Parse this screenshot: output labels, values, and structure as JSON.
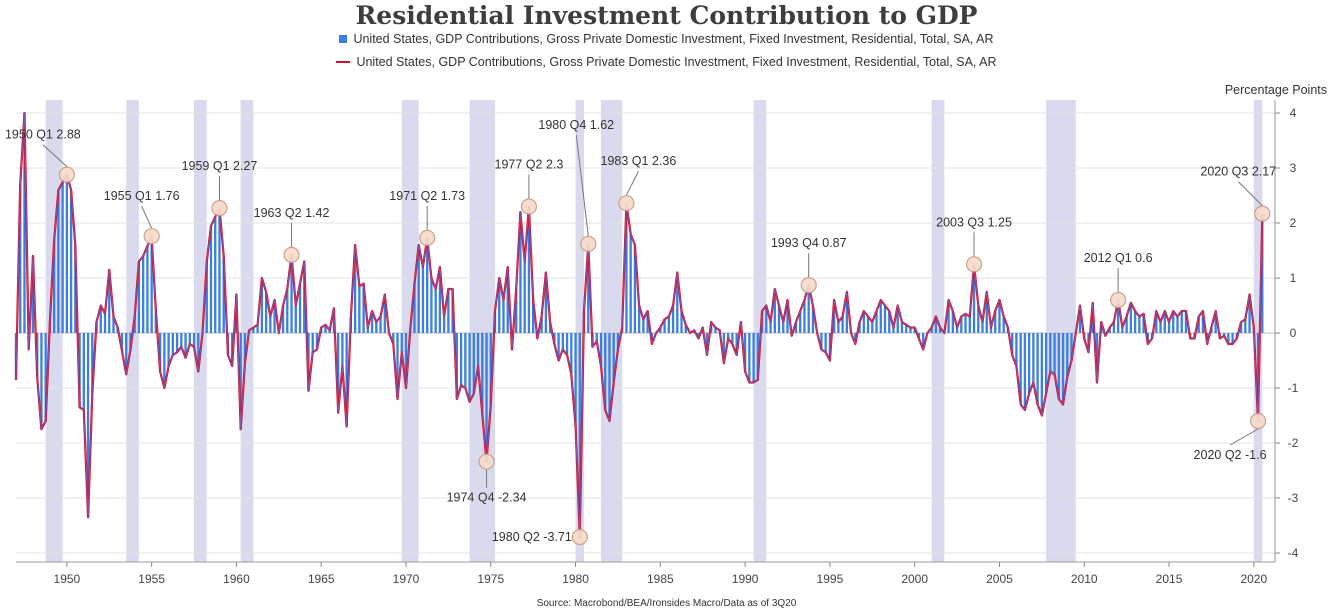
{
  "title": "Residential Investment Contribution to GDP",
  "legend": [
    {
      "name": "United States, GDP Contributions, Gross Private Domestic Investment, Fixed Investment, Residential, Total, SA, AR",
      "marker": "bar",
      "color": "#3c7fe0"
    },
    {
      "name": "United States, GDP Contributions, Gross Private Domestic Investment, Fixed Investment, Residential, Total, SA, AR",
      "marker": "line",
      "color": "#d0102c"
    }
  ],
  "unit_label": "Percentage Points",
  "source": "Source: Macrobond/BEA/Ironsides Macro/Data as of 3Q20",
  "colors": {
    "bars": "#3c7fe0",
    "line": "#d0102c",
    "recession": "#dadaee",
    "annotation_fill": "#f6dccb",
    "annotation_stroke": "#c89a85",
    "grid": "#e3e3e3",
    "text": "#444444"
  },
  "chart_data": {
    "type": "bar+line",
    "x_range": [
      1947.0,
      2021.25
    ],
    "ylim": [
      -4.2,
      4.2
    ],
    "y_ticks": [
      -4,
      -3,
      -2,
      -1,
      0,
      1,
      2,
      3,
      4
    ],
    "x_ticks": [
      1950,
      1955,
      1960,
      1965,
      1970,
      1975,
      1980,
      1985,
      1990,
      1995,
      2000,
      2005,
      2010,
      2015,
      2020
    ],
    "grid": true,
    "legend_position": "top-center",
    "recessions": [
      [
        1948.75,
        1949.75
      ],
      [
        1953.5,
        1954.25
      ],
      [
        1957.5,
        1958.25
      ],
      [
        1960.25,
        1961.0
      ],
      [
        1969.75,
        1970.75
      ],
      [
        1973.75,
        1975.25
      ],
      [
        1980.0,
        1980.5
      ],
      [
        1981.5,
        1982.75
      ],
      [
        1990.5,
        1991.25
      ],
      [
        2001.0,
        2001.75
      ],
      [
        2007.75,
        2009.5
      ],
      [
        2020.0,
        2020.5
      ]
    ],
    "quarterly_keypoints": [
      [
        1947.0,
        -0.85
      ],
      [
        1947.25,
        2.7
      ],
      [
        1947.5,
        4.0
      ],
      [
        1947.75,
        -0.3
      ],
      [
        1948.0,
        1.4
      ],
      [
        1948.25,
        -0.8
      ],
      [
        1948.5,
        -1.75
      ],
      [
        1948.75,
        -1.6
      ],
      [
        1949.0,
        0.2
      ],
      [
        1949.25,
        1.7
      ],
      [
        1949.5,
        2.6
      ],
      [
        1950.0,
        2.88
      ],
      [
        1950.25,
        2.6
      ],
      [
        1950.5,
        1.6
      ],
      [
        1950.75,
        -1.35
      ],
      [
        1951.0,
        -1.4
      ],
      [
        1951.25,
        -3.35
      ],
      [
        1951.5,
        -1.1
      ],
      [
        1951.75,
        0.2
      ],
      [
        1952.0,
        0.5
      ],
      [
        1952.25,
        0.35
      ],
      [
        1952.5,
        1.15
      ],
      [
        1952.75,
        0.3
      ],
      [
        1953.0,
        0.1
      ],
      [
        1953.5,
        -0.75
      ],
      [
        1953.75,
        -0.3
      ],
      [
        1954.0,
        0.3
      ],
      [
        1954.25,
        1.3
      ],
      [
        1954.5,
        1.4
      ],
      [
        1955.0,
        1.76
      ],
      [
        1955.25,
        0.4
      ],
      [
        1955.5,
        -0.7
      ],
      [
        1955.75,
        -1.0
      ],
      [
        1956.0,
        -0.6
      ],
      [
        1956.25,
        -0.4
      ],
      [
        1956.5,
        -0.35
      ],
      [
        1956.75,
        -0.25
      ],
      [
        1957.0,
        -0.45
      ],
      [
        1957.25,
        -0.2
      ],
      [
        1957.5,
        -0.25
      ],
      [
        1957.75,
        -0.7
      ],
      [
        1958.0,
        0.0
      ],
      [
        1958.25,
        1.3
      ],
      [
        1958.5,
        1.95
      ],
      [
        1959.0,
        2.27
      ],
      [
        1959.25,
        1.4
      ],
      [
        1959.5,
        -0.4
      ],
      [
        1959.75,
        -0.6
      ],
      [
        1960.0,
        0.7
      ],
      [
        1960.25,
        -1.75
      ],
      [
        1960.5,
        -0.55
      ],
      [
        1960.75,
        0.05
      ],
      [
        1961.0,
        0.1
      ],
      [
        1961.25,
        0.15
      ],
      [
        1961.5,
        1.0
      ],
      [
        1961.75,
        0.75
      ],
      [
        1962.0,
        0.3
      ],
      [
        1962.25,
        0.6
      ],
      [
        1962.5,
        0.0
      ],
      [
        1962.75,
        0.5
      ],
      [
        1963.0,
        0.8
      ],
      [
        1963.25,
        1.42
      ],
      [
        1963.5,
        0.5
      ],
      [
        1963.75,
        0.9
      ],
      [
        1964.0,
        1.3
      ],
      [
        1964.25,
        -1.05
      ],
      [
        1964.5,
        -0.35
      ],
      [
        1964.75,
        -0.3
      ],
      [
        1965.0,
        0.1
      ],
      [
        1965.25,
        0.15
      ],
      [
        1965.5,
        0.05
      ],
      [
        1965.75,
        0.45
      ],
      [
        1966.0,
        -1.45
      ],
      [
        1966.25,
        -0.6
      ],
      [
        1966.5,
        -1.7
      ],
      [
        1966.75,
        0.3
      ],
      [
        1967.0,
        1.6
      ],
      [
        1967.25,
        0.85
      ],
      [
        1967.5,
        0.9
      ],
      [
        1967.75,
        0.1
      ],
      [
        1968.0,
        0.4
      ],
      [
        1968.25,
        0.2
      ],
      [
        1968.5,
        0.3
      ],
      [
        1968.75,
        0.7
      ],
      [
        1969.0,
        0.0
      ],
      [
        1969.25,
        -0.2
      ],
      [
        1969.5,
        -1.2
      ],
      [
        1969.75,
        -0.35
      ],
      [
        1970.0,
        -1.0
      ],
      [
        1970.25,
        0.05
      ],
      [
        1970.5,
        0.9
      ],
      [
        1970.75,
        1.6
      ],
      [
        1971.0,
        1.2
      ],
      [
        1971.25,
        1.73
      ],
      [
        1971.5,
        1.0
      ],
      [
        1971.75,
        0.8
      ],
      [
        1972.0,
        1.2
      ],
      [
        1972.25,
        0.3
      ],
      [
        1972.5,
        0.8
      ],
      [
        1972.75,
        0.8
      ],
      [
        1973.0,
        -1.2
      ],
      [
        1973.25,
        -0.95
      ],
      [
        1973.5,
        -1.0
      ],
      [
        1973.75,
        -1.25
      ],
      [
        1974.0,
        -1.1
      ],
      [
        1974.25,
        -0.6
      ],
      [
        1974.75,
        -2.34
      ],
      [
        1975.0,
        -1.3
      ],
      [
        1975.25,
        0.4
      ],
      [
        1975.5,
        1.0
      ],
      [
        1975.75,
        0.6
      ],
      [
        1976.0,
        1.2
      ],
      [
        1976.25,
        -0.3
      ],
      [
        1976.5,
        0.8
      ],
      [
        1976.75,
        2.2
      ],
      [
        1977.0,
        1.3
      ],
      [
        1977.25,
        2.3
      ],
      [
        1977.5,
        0.6
      ],
      [
        1977.75,
        -0.1
      ],
      [
        1978.0,
        0.3
      ],
      [
        1978.25,
        1.1
      ],
      [
        1978.5,
        0.2
      ],
      [
        1978.75,
        -0.2
      ],
      [
        1979.0,
        -0.5
      ],
      [
        1979.25,
        -0.3
      ],
      [
        1979.5,
        -0.4
      ],
      [
        1979.75,
        -0.75
      ],
      [
        1980.0,
        -1.7
      ],
      [
        1980.25,
        -3.71
      ],
      [
        1980.5,
        0.4
      ],
      [
        1980.75,
        1.62
      ],
      [
        1981.0,
        -0.25
      ],
      [
        1981.25,
        -0.15
      ],
      [
        1981.5,
        -0.6
      ],
      [
        1981.75,
        -1.4
      ],
      [
        1982.0,
        -1.6
      ],
      [
        1982.25,
        -0.9
      ],
      [
        1982.5,
        -0.3
      ],
      [
        1982.75,
        0.1
      ],
      [
        1983.0,
        2.36
      ],
      [
        1983.25,
        1.8
      ],
      [
        1983.5,
        1.6
      ],
      [
        1983.75,
        0.5
      ],
      [
        1984.0,
        0.25
      ],
      [
        1984.25,
        0.4
      ],
      [
        1984.5,
        -0.2
      ],
      [
        1984.75,
        0.0
      ],
      [
        1985.0,
        0.1
      ],
      [
        1985.25,
        0.25
      ],
      [
        1985.5,
        0.3
      ],
      [
        1985.75,
        0.5
      ],
      [
        1986.0,
        1.1
      ],
      [
        1986.25,
        0.4
      ],
      [
        1986.5,
        0.15
      ],
      [
        1986.75,
        0.0
      ],
      [
        1987.0,
        0.05
      ],
      [
        1987.25,
        -0.1
      ],
      [
        1987.5,
        0.1
      ],
      [
        1987.75,
        -0.4
      ],
      [
        1988.0,
        0.2
      ],
      [
        1988.25,
        0.1
      ],
      [
        1988.5,
        0.05
      ],
      [
        1988.75,
        -0.55
      ],
      [
        1989.0,
        -0.1
      ],
      [
        1989.25,
        -0.2
      ],
      [
        1989.5,
        -0.4
      ],
      [
        1989.75,
        0.2
      ],
      [
        1990.0,
        -0.7
      ],
      [
        1990.25,
        -0.9
      ],
      [
        1990.5,
        -0.9
      ],
      [
        1990.75,
        -0.85
      ],
      [
        1991.0,
        0.4
      ],
      [
        1991.25,
        0.5
      ],
      [
        1991.5,
        0.2
      ],
      [
        1991.75,
        0.8
      ],
      [
        1992.0,
        0.5
      ],
      [
        1992.25,
        0.2
      ],
      [
        1992.5,
        0.6
      ],
      [
        1992.75,
        -0.05
      ],
      [
        1993.0,
        0.2
      ],
      [
        1993.5,
        0.6
      ],
      [
        1993.75,
        0.87
      ],
      [
        1994.0,
        0.5
      ],
      [
        1994.25,
        0.0
      ],
      [
        1994.5,
        -0.3
      ],
      [
        1994.75,
        -0.35
      ],
      [
        1995.0,
        -0.5
      ],
      [
        1995.25,
        0.6
      ],
      [
        1995.5,
        0.2
      ],
      [
        1995.75,
        0.3
      ],
      [
        1996.0,
        0.75
      ],
      [
        1996.25,
        0.0
      ],
      [
        1996.5,
        -0.2
      ],
      [
        1996.75,
        0.2
      ],
      [
        1997.0,
        0.4
      ],
      [
        1997.25,
        0.3
      ],
      [
        1997.5,
        0.2
      ],
      [
        1997.75,
        0.4
      ],
      [
        1998.0,
        0.6
      ],
      [
        1998.25,
        0.5
      ],
      [
        1998.5,
        0.4
      ],
      [
        1998.75,
        0.1
      ],
      [
        1999.0,
        0.5
      ],
      [
        1999.25,
        0.2
      ],
      [
        1999.5,
        0.15
      ],
      [
        1999.75,
        0.1
      ],
      [
        2000.0,
        0.1
      ],
      [
        2000.25,
        -0.1
      ],
      [
        2000.5,
        -0.3
      ],
      [
        2000.75,
        0.0
      ],
      [
        2001.0,
        0.1
      ],
      [
        2001.25,
        0.3
      ],
      [
        2001.5,
        0.1
      ],
      [
        2001.75,
        0.0
      ],
      [
        2002.0,
        0.6
      ],
      [
        2002.25,
        0.4
      ],
      [
        2002.5,
        0.1
      ],
      [
        2002.75,
        0.3
      ],
      [
        2003.0,
        0.35
      ],
      [
        2003.25,
        0.3
      ],
      [
        2003.5,
        1.25
      ],
      [
        2003.75,
        0.5
      ],
      [
        2004.0,
        0.2
      ],
      [
        2004.25,
        0.75
      ],
      [
        2004.5,
        0.1
      ],
      [
        2004.75,
        0.4
      ],
      [
        2005.0,
        0.6
      ],
      [
        2005.25,
        0.3
      ],
      [
        2005.5,
        0.1
      ],
      [
        2005.75,
        -0.4
      ],
      [
        2006.0,
        -0.6
      ],
      [
        2006.25,
        -1.3
      ],
      [
        2006.5,
        -1.4
      ],
      [
        2006.75,
        -1.1
      ],
      [
        2007.0,
        -0.9
      ],
      [
        2007.25,
        -1.3
      ],
      [
        2007.5,
        -1.5
      ],
      [
        2007.75,
        -1.1
      ],
      [
        2008.0,
        -0.7
      ],
      [
        2008.25,
        -0.75
      ],
      [
        2008.5,
        -1.2
      ],
      [
        2008.75,
        -1.3
      ],
      [
        2009.0,
        -0.8
      ],
      [
        2009.25,
        -0.5
      ],
      [
        2009.75,
        0.5
      ],
      [
        2010.0,
        -0.1
      ],
      [
        2010.25,
        -0.35
      ],
      [
        2010.5,
        0.55
      ],
      [
        2010.75,
        -0.9
      ],
      [
        2011.0,
        0.2
      ],
      [
        2011.25,
        -0.05
      ],
      [
        2011.5,
        0.1
      ],
      [
        2011.75,
        0.2
      ],
      [
        2012.0,
        0.6
      ],
      [
        2012.25,
        0.1
      ],
      [
        2012.5,
        0.3
      ],
      [
        2012.75,
        0.55
      ],
      [
        2013.0,
        0.4
      ],
      [
        2013.25,
        0.3
      ],
      [
        2013.5,
        0.35
      ],
      [
        2013.75,
        -0.2
      ],
      [
        2014.0,
        -0.1
      ],
      [
        2014.25,
        0.4
      ],
      [
        2014.5,
        0.2
      ],
      [
        2014.75,
        0.4
      ],
      [
        2015.0,
        0.2
      ],
      [
        2015.25,
        0.4
      ],
      [
        2015.5,
        0.3
      ],
      [
        2015.75,
        0.4
      ],
      [
        2016.0,
        0.4
      ],
      [
        2016.25,
        -0.1
      ],
      [
        2016.5,
        -0.1
      ],
      [
        2016.75,
        0.3
      ],
      [
        2017.0,
        0.4
      ],
      [
        2017.25,
        -0.2
      ],
      [
        2017.5,
        0.1
      ],
      [
        2017.75,
        0.4
      ],
      [
        2018.0,
        -0.1
      ],
      [
        2018.25,
        -0.05
      ],
      [
        2018.5,
        -0.2
      ],
      [
        2018.75,
        -0.2
      ],
      [
        2019.0,
        -0.1
      ],
      [
        2019.25,
        0.2
      ],
      [
        2019.5,
        0.25
      ],
      [
        2019.75,
        0.7
      ],
      [
        2020.0,
        0.1
      ],
      [
        2020.25,
        -1.6
      ],
      [
        2020.5,
        2.17
      ]
    ],
    "annotations": [
      {
        "label": "1950 Q1 2.88",
        "x": 1950.0,
        "y": 2.88
      },
      {
        "label": "1955 Q1 1.76",
        "x": 1955.0,
        "y": 1.76
      },
      {
        "label": "1959 Q1 2.27",
        "x": 1959.0,
        "y": 2.27
      },
      {
        "label": "1963 Q2 1.42",
        "x": 1963.25,
        "y": 1.42
      },
      {
        "label": "1971 Q2 1.73",
        "x": 1971.25,
        "y": 1.73
      },
      {
        "label": "1974 Q4 -2.34",
        "x": 1974.75,
        "y": -2.34
      },
      {
        "label": "1977 Q2 2.3",
        "x": 1977.25,
        "y": 2.3
      },
      {
        "label": "1980 Q2 -3.71",
        "x": 1980.25,
        "y": -3.71
      },
      {
        "label": "1980 Q4 1.62",
        "x": 1980.75,
        "y": 1.62
      },
      {
        "label": "1983 Q1 2.36",
        "x": 1983.0,
        "y": 2.36
      },
      {
        "label": "1993 Q4 0.87",
        "x": 1993.75,
        "y": 0.87
      },
      {
        "label": "2003 Q3 1.25",
        "x": 2003.5,
        "y": 1.25
      },
      {
        "label": "2012 Q1 0.6",
        "x": 2012.0,
        "y": 0.6
      },
      {
        "label": "2020 Q2 -1.6",
        "x": 2020.25,
        "y": -1.6
      },
      {
        "label": "2020 Q3 2.17",
        "x": 2020.5,
        "y": 2.17
      }
    ]
  }
}
